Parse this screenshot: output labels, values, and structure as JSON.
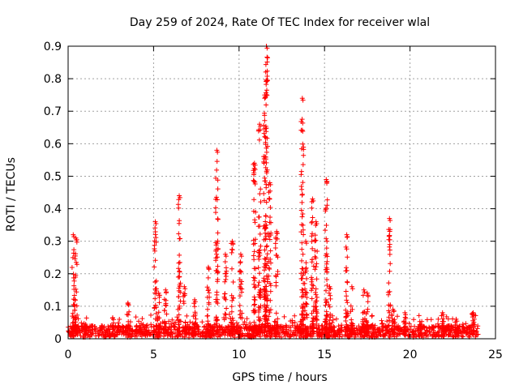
{
  "chart_data": {
    "type": "scatter",
    "title": "Day 259 of 2024, Rate Of TEC Index for receiver wlal",
    "xlabel": "GPS time / hours",
    "ylabel": "ROTI / TECUs",
    "xlim": [
      0,
      25
    ],
    "ylim": [
      0,
      0.9
    ],
    "xticks": [
      0,
      5,
      10,
      15,
      20,
      25
    ],
    "yticks": [
      0,
      0.1,
      0.2,
      0.3,
      0.4,
      0.5,
      0.6,
      0.7,
      0.8,
      0.9
    ],
    "grid": true,
    "marker": "+",
    "marker_color": "#ff0000",
    "data_range_hours": [
      0,
      24
    ],
    "baseline_level": 0.03,
    "peaks": [
      {
        "x": 0.3,
        "y": 0.32
      },
      {
        "x": 0.45,
        "y": 0.31
      },
      {
        "x": 3.5,
        "y": 0.11
      },
      {
        "x": 5.1,
        "y": 0.36
      },
      {
        "x": 5.3,
        "y": 0.14
      },
      {
        "x": 5.7,
        "y": 0.15
      },
      {
        "x": 6.5,
        "y": 0.44
      },
      {
        "x": 6.8,
        "y": 0.16
      },
      {
        "x": 7.4,
        "y": 0.12
      },
      {
        "x": 8.2,
        "y": 0.22
      },
      {
        "x": 8.7,
        "y": 0.58
      },
      {
        "x": 9.2,
        "y": 0.26
      },
      {
        "x": 9.6,
        "y": 0.3
      },
      {
        "x": 10.1,
        "y": 0.26
      },
      {
        "x": 10.9,
        "y": 0.54
      },
      {
        "x": 11.2,
        "y": 0.66
      },
      {
        "x": 11.5,
        "y": 0.75
      },
      {
        "x": 11.6,
        "y": 0.9
      },
      {
        "x": 11.8,
        "y": 0.48
      },
      {
        "x": 12.2,
        "y": 0.33
      },
      {
        "x": 13.7,
        "y": 0.74
      },
      {
        "x": 13.9,
        "y": 0.3
      },
      {
        "x": 14.3,
        "y": 0.43
      },
      {
        "x": 14.5,
        "y": 0.36
      },
      {
        "x": 15.1,
        "y": 0.49
      },
      {
        "x": 15.3,
        "y": 0.16
      },
      {
        "x": 16.3,
        "y": 0.32
      },
      {
        "x": 16.6,
        "y": 0.16
      },
      {
        "x": 17.3,
        "y": 0.15
      },
      {
        "x": 17.5,
        "y": 0.14
      },
      {
        "x": 18.8,
        "y": 0.37
      },
      {
        "x": 19.0,
        "y": 0.09
      },
      {
        "x": 19.7,
        "y": 0.08
      },
      {
        "x": 21.9,
        "y": 0.08
      },
      {
        "x": 22.7,
        "y": 0.06
      },
      {
        "x": 23.7,
        "y": 0.08
      }
    ]
  }
}
